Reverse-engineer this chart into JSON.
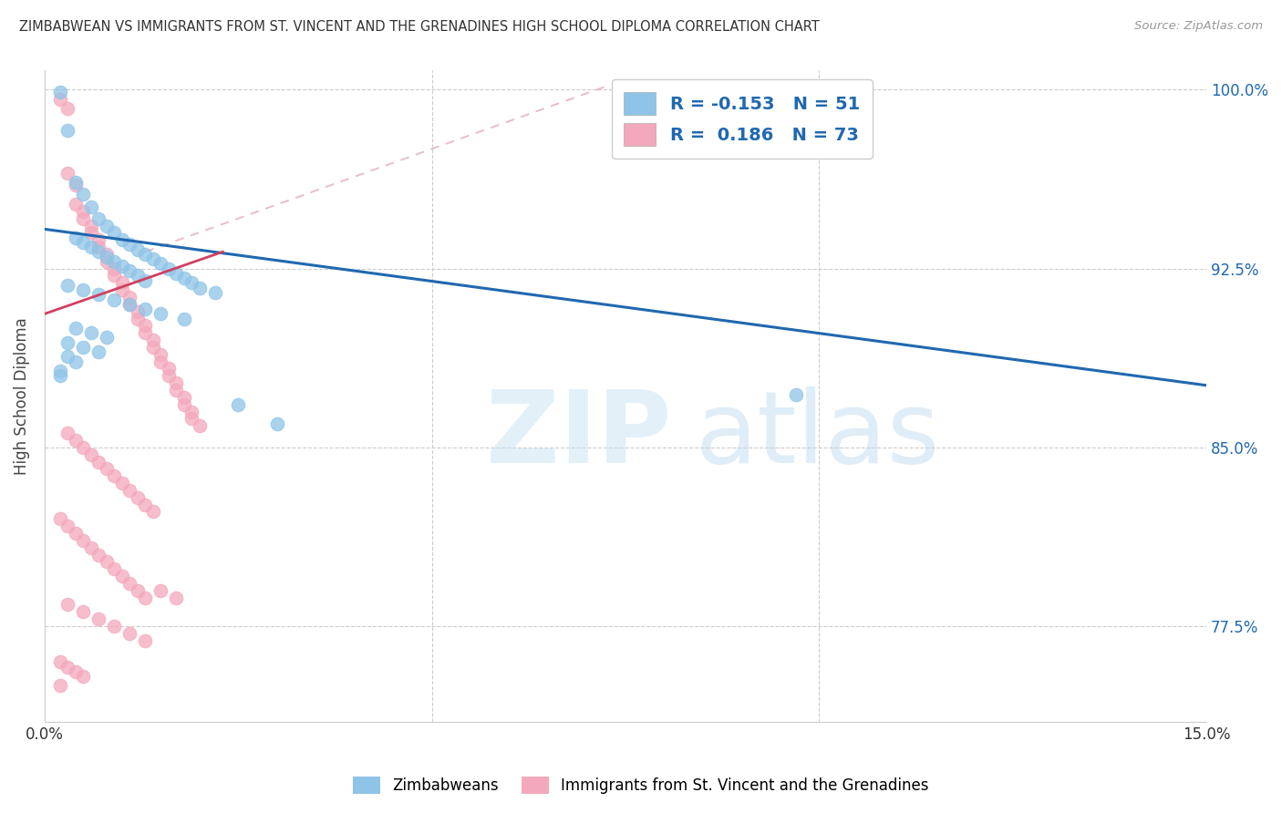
{
  "title": "ZIMBABWEAN VS IMMIGRANTS FROM ST. VINCENT AND THE GRENADINES HIGH SCHOOL DIPLOMA CORRELATION CHART",
  "source": "Source: ZipAtlas.com",
  "ylabel": "High School Diploma",
  "legend_label1": "Zimbabweans",
  "legend_label2": "Immigrants from St. Vincent and the Grenadines",
  "R1": -0.153,
  "N1": 51,
  "R2": 0.186,
  "N2": 73,
  "color_blue": "#8ec4e8",
  "color_pink": "#f4a8bc",
  "line_blue": "#2068b0",
  "line_pink": "#d04060",
  "line_dashed_color": "#e8b0c0",
  "xmin": 0.0,
  "xmax": 0.15,
  "ymin": 0.735,
  "ymax": 1.008,
  "blue_line_x": [
    0.0,
    0.15
  ],
  "blue_line_y": [
    0.9415,
    0.876
  ],
  "pink_line_x": [
    0.0,
    0.023
  ],
  "pink_line_y": [
    0.906,
    0.932
  ],
  "dashed_line_x": [
    0.013,
    0.073
  ],
  "dashed_line_y": [
    0.932,
    1.002
  ],
  "blue_scatter_x": [
    0.002,
    0.003,
    0.004,
    0.005,
    0.006,
    0.007,
    0.008,
    0.009,
    0.01,
    0.011,
    0.012,
    0.013,
    0.014,
    0.015,
    0.016,
    0.017,
    0.018,
    0.019,
    0.02,
    0.022,
    0.004,
    0.005,
    0.006,
    0.007,
    0.008,
    0.009,
    0.01,
    0.011,
    0.012,
    0.013,
    0.003,
    0.005,
    0.007,
    0.009,
    0.011,
    0.013,
    0.015,
    0.018,
    0.025,
    0.03,
    0.004,
    0.006,
    0.008,
    0.003,
    0.005,
    0.007,
    0.003,
    0.004,
    0.097,
    0.002,
    0.002
  ],
  "blue_scatter_y": [
    0.999,
    0.983,
    0.961,
    0.956,
    0.951,
    0.946,
    0.943,
    0.94,
    0.937,
    0.935,
    0.933,
    0.931,
    0.929,
    0.927,
    0.925,
    0.923,
    0.921,
    0.919,
    0.917,
    0.915,
    0.938,
    0.936,
    0.934,
    0.932,
    0.93,
    0.928,
    0.926,
    0.924,
    0.922,
    0.92,
    0.918,
    0.916,
    0.914,
    0.912,
    0.91,
    0.908,
    0.906,
    0.904,
    0.868,
    0.86,
    0.9,
    0.898,
    0.896,
    0.894,
    0.892,
    0.89,
    0.888,
    0.886,
    0.872,
    0.882,
    0.88
  ],
  "pink_scatter_x": [
    0.002,
    0.003,
    0.003,
    0.004,
    0.004,
    0.005,
    0.005,
    0.006,
    0.006,
    0.007,
    0.007,
    0.008,
    0.008,
    0.009,
    0.009,
    0.01,
    0.01,
    0.011,
    0.011,
    0.012,
    0.012,
    0.013,
    0.013,
    0.014,
    0.014,
    0.015,
    0.015,
    0.016,
    0.016,
    0.017,
    0.017,
    0.018,
    0.018,
    0.019,
    0.019,
    0.02,
    0.003,
    0.004,
    0.005,
    0.006,
    0.007,
    0.008,
    0.009,
    0.01,
    0.011,
    0.012,
    0.013,
    0.014,
    0.002,
    0.003,
    0.004,
    0.005,
    0.006,
    0.007,
    0.008,
    0.009,
    0.01,
    0.011,
    0.012,
    0.013,
    0.003,
    0.005,
    0.007,
    0.009,
    0.011,
    0.013,
    0.015,
    0.017,
    0.002,
    0.003,
    0.004,
    0.005,
    0.002
  ],
  "pink_scatter_y": [
    0.996,
    0.992,
    0.965,
    0.96,
    0.952,
    0.949,
    0.946,
    0.943,
    0.94,
    0.937,
    0.934,
    0.931,
    0.928,
    0.925,
    0.922,
    0.919,
    0.916,
    0.913,
    0.91,
    0.907,
    0.904,
    0.901,
    0.898,
    0.895,
    0.892,
    0.889,
    0.886,
    0.883,
    0.88,
    0.877,
    0.874,
    0.871,
    0.868,
    0.865,
    0.862,
    0.859,
    0.856,
    0.853,
    0.85,
    0.847,
    0.844,
    0.841,
    0.838,
    0.835,
    0.832,
    0.829,
    0.826,
    0.823,
    0.82,
    0.817,
    0.814,
    0.811,
    0.808,
    0.805,
    0.802,
    0.799,
    0.796,
    0.793,
    0.79,
    0.787,
    0.784,
    0.781,
    0.778,
    0.775,
    0.772,
    0.769,
    0.79,
    0.787,
    0.76,
    0.758,
    0.756,
    0.754,
    0.75
  ]
}
